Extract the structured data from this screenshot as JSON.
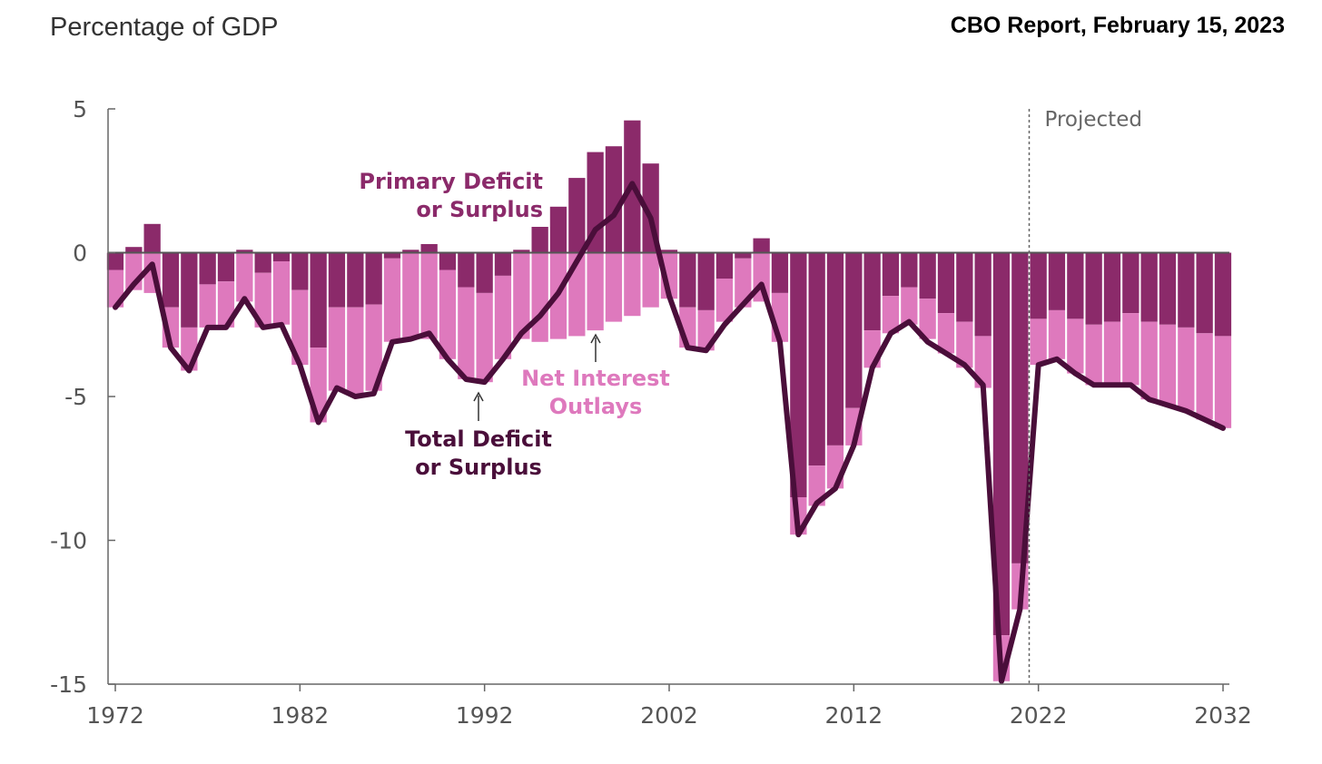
{
  "header": {
    "y_units_label": "Percentage of GDP",
    "source_label": "CBO Report, February 15, 2023"
  },
  "colors": {
    "primary": "#8b2a6a",
    "net_interest": "#de79bd",
    "total_line": "#4a0e3a",
    "axis": "#666666",
    "text": "#555555"
  },
  "chart_data": {
    "type": "bar",
    "title": "",
    "xlabel": "",
    "ylabel": "Percentage of GDP",
    "ylim": [
      -15,
      5
    ],
    "yticks": [
      5,
      0,
      -5,
      -10,
      -15
    ],
    "ytick_labels": [
      "5",
      "0",
      "-5",
      "-10",
      "-15"
    ],
    "xticks": [
      1972,
      1982,
      1992,
      2002,
      2012,
      2022,
      2032
    ],
    "xtick_labels": [
      "1972",
      "1982",
      "1992",
      "2002",
      "2012",
      "2022",
      "2032"
    ],
    "projection_start_label": "Projected",
    "projection_start_year": 2021.5,
    "x": [
      1972,
      1973,
      1974,
      1975,
      1976,
      1977,
      1978,
      1979,
      1980,
      1981,
      1982,
      1983,
      1984,
      1985,
      1986,
      1987,
      1988,
      1989,
      1990,
      1991,
      1992,
      1993,
      1994,
      1995,
      1996,
      1997,
      1998,
      1999,
      2000,
      2001,
      2002,
      2003,
      2004,
      2005,
      2006,
      2007,
      2008,
      2009,
      2010,
      2011,
      2012,
      2013,
      2014,
      2015,
      2016,
      2017,
      2018,
      2019,
      2020,
      2021,
      2022,
      2023,
      2024,
      2025,
      2026,
      2027,
      2028,
      2029,
      2030,
      2031,
      2032
    ],
    "series": [
      {
        "name": "Primary Deficit or Surplus",
        "values": [
          -0.6,
          0.2,
          1.0,
          -1.9,
          -2.6,
          -1.1,
          -1.0,
          0.1,
          -0.7,
          -0.3,
          -1.3,
          -3.3,
          -1.9,
          -1.9,
          -1.8,
          -0.2,
          0.1,
          0.3,
          -0.6,
          -1.2,
          -1.4,
          -0.8,
          0.1,
          0.9,
          1.6,
          2.6,
          3.5,
          3.7,
          4.6,
          3.1,
          0.1,
          -1.9,
          -2.0,
          -0.9,
          -0.2,
          0.5,
          -1.4,
          -8.5,
          -7.4,
          -6.7,
          -5.4,
          -2.7,
          -1.5,
          -1.2,
          -1.6,
          -2.1,
          -2.4,
          -2.9,
          -13.3,
          -10.8,
          -2.3,
          -2.0,
          -2.3,
          -2.5,
          -2.4,
          -2.1,
          -2.4,
          -2.5,
          -2.6,
          -2.8,
          -2.9
        ]
      },
      {
        "name": "Net Interest Outlays",
        "values": [
          -1.3,
          -1.3,
          -1.4,
          -1.4,
          -1.5,
          -1.5,
          -1.6,
          -1.7,
          -1.9,
          -2.2,
          -2.6,
          -2.6,
          -2.9,
          -3.0,
          -3.0,
          -2.9,
          -3.0,
          -3.0,
          -3.1,
          -3.2,
          -3.1,
          -2.9,
          -3.0,
          -3.1,
          -3.0,
          -2.9,
          -2.7,
          -2.4,
          -2.2,
          -1.9,
          -1.6,
          -1.4,
          -1.4,
          -1.5,
          -1.7,
          -1.7,
          -1.7,
          -1.3,
          -1.4,
          -1.5,
          -1.3,
          -1.3,
          -1.3,
          -1.3,
          -1.4,
          -1.4,
          -1.6,
          -1.8,
          -1.6,
          -1.6,
          -1.6,
          -1.7,
          -1.9,
          -2.1,
          -2.2,
          -2.5,
          -2.7,
          -2.8,
          -2.9,
          -3.0,
          -3.2
        ]
      },
      {
        "name": "Total Deficit or Surplus",
        "values": [
          -1.9,
          -1.1,
          -0.4,
          -3.3,
          -4.1,
          -2.6,
          -2.6,
          -1.6,
          -2.6,
          -2.5,
          -3.9,
          -5.9,
          -4.7,
          -5.0,
          -4.9,
          -3.1,
          -3.0,
          -2.8,
          -3.7,
          -4.4,
          -4.5,
          -3.7,
          -2.8,
          -2.2,
          -1.4,
          -0.3,
          0.8,
          1.3,
          2.4,
          1.2,
          -1.5,
          -3.3,
          -3.4,
          -2.5,
          -1.8,
          -1.1,
          -3.1,
          -9.8,
          -8.7,
          -8.2,
          -6.7,
          -4.0,
          -2.8,
          -2.4,
          -3.1,
          -3.5,
          -3.9,
          -4.6,
          -14.9,
          -12.4,
          -3.9,
          -3.7,
          -4.2,
          -4.6,
          -4.6,
          -4.6,
          -5.1,
          -5.3,
          -5.5,
          -5.8,
          -6.1
        ]
      }
    ],
    "annotations": {
      "primary_line1": "Primary Deficit",
      "primary_line2": "or Surplus",
      "interest_line1": "Net Interest",
      "interest_line2": "Outlays",
      "total_line1": "Total Deficit",
      "total_line2": "or Surplus"
    }
  }
}
